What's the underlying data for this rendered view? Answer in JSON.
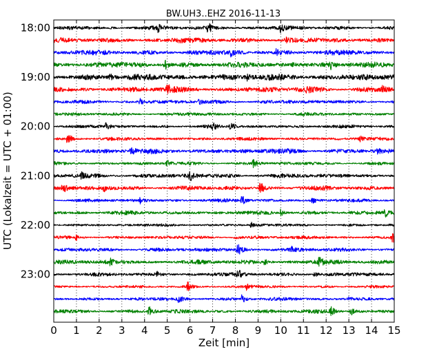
{
  "chart_data": {
    "type": "line",
    "title": "BW.UH3..EHZ 2016-11-13",
    "xlabel": "Zeit  [min]",
    "ylabel": "UTC (Lokalzeit = UTC + 01:00)",
    "xlim": [
      0,
      15
    ],
    "x_ticks": [
      0,
      1,
      2,
      3,
      4,
      5,
      6,
      7,
      8,
      9,
      10,
      11,
      12,
      13,
      14,
      15
    ],
    "x_tick_labels": [
      "0",
      "1",
      "2",
      "3",
      "4",
      "5",
      "6",
      "7",
      "8",
      "9",
      "10",
      "11",
      "12",
      "13",
      "14",
      "15"
    ],
    "y_tick_labels": [
      "18:00",
      "19:00",
      "20:00",
      "21:00",
      "22:00",
      "23:00"
    ],
    "grid": "vertical dotted at each minute",
    "trace_interval_min": 15,
    "colors": [
      "#000000",
      "#ff0000",
      "#0000ff",
      "#008000"
    ],
    "traces": [
      {
        "start": "18:00",
        "color": "#000000",
        "amp": 0.35,
        "events": [
          [
            6.8,
            1.4
          ],
          [
            4.6,
            0.6
          ],
          [
            10.0,
            0.7
          ]
        ]
      },
      {
        "start": "18:15",
        "color": "#ff0000",
        "amp": 0.45,
        "events": [
          [
            5.5,
            0.5
          ],
          [
            10.2,
            0.5
          ]
        ]
      },
      {
        "start": "18:30",
        "color": "#0000ff",
        "amp": 0.45,
        "events": [
          [
            7.8,
            0.5
          ],
          [
            9.8,
            0.5
          ]
        ]
      },
      {
        "start": "18:45",
        "color": "#008000",
        "amp": 0.5,
        "events": [
          [
            4.9,
            0.9
          ],
          [
            12.2,
            0.8
          ],
          [
            10.5,
            0.5
          ]
        ]
      },
      {
        "start": "19:00",
        "color": "#000000",
        "amp": 0.6,
        "events": [
          [
            2.5,
            0.5
          ],
          [
            8.5,
            0.5
          ]
        ]
      },
      {
        "start": "19:15",
        "color": "#ff0000",
        "amp": 0.5,
        "events": [
          [
            5.0,
            1.4
          ],
          [
            11.1,
            0.9
          ],
          [
            14.5,
            0.6
          ]
        ]
      },
      {
        "start": "19:30",
        "color": "#0000ff",
        "amp": 0.35,
        "events": [
          [
            3.8,
            0.6
          ],
          [
            6.4,
            0.5
          ]
        ]
      },
      {
        "start": "19:45",
        "color": "#008000",
        "amp": 0.3,
        "events": []
      },
      {
        "start": "20:00",
        "color": "#000000",
        "amp": 0.3,
        "events": [
          [
            2.3,
            0.5
          ],
          [
            7.0,
            0.6
          ],
          [
            7.8,
            0.9
          ]
        ]
      },
      {
        "start": "20:15",
        "color": "#ff0000",
        "amp": 0.3,
        "events": [
          [
            0.6,
            1.6
          ],
          [
            13.5,
            0.5
          ]
        ]
      },
      {
        "start": "20:30",
        "color": "#0000ff",
        "amp": 0.45,
        "events": [
          [
            3.4,
            1.3
          ],
          [
            14.2,
            0.5
          ]
        ]
      },
      {
        "start": "20:45",
        "color": "#008000",
        "amp": 0.3,
        "events": [
          [
            5.0,
            0.5
          ],
          [
            8.8,
            1.0
          ]
        ]
      },
      {
        "start": "21:00",
        "color": "#000000",
        "amp": 0.4,
        "events": [
          [
            1.2,
            0.7
          ],
          [
            6.0,
            1.2
          ]
        ]
      },
      {
        "start": "21:15",
        "color": "#ff0000",
        "amp": 0.4,
        "events": [
          [
            0.4,
            1.0
          ],
          [
            9.1,
            1.6
          ],
          [
            2.2,
            0.6
          ]
        ]
      },
      {
        "start": "21:30",
        "color": "#0000ff",
        "amp": 0.3,
        "events": [
          [
            3.8,
            0.7
          ],
          [
            8.3,
            1.0
          ],
          [
            11.4,
            0.6
          ]
        ]
      },
      {
        "start": "21:45",
        "color": "#008000",
        "amp": 0.35,
        "events": [
          [
            10.0,
            0.6
          ],
          [
            14.6,
            0.7
          ]
        ]
      },
      {
        "start": "22:00",
        "color": "#000000",
        "amp": 0.25,
        "events": [
          [
            8.7,
            0.6
          ]
        ]
      },
      {
        "start": "22:15",
        "color": "#ff0000",
        "amp": 0.3,
        "events": [
          [
            1.0,
            0.5
          ],
          [
            8.0,
            0.5
          ],
          [
            14.9,
            1.2
          ]
        ]
      },
      {
        "start": "22:30",
        "color": "#0000ff",
        "amp": 0.35,
        "events": [
          [
            8.1,
            2.2
          ],
          [
            10.5,
            0.5
          ]
        ]
      },
      {
        "start": "22:45",
        "color": "#008000",
        "amp": 0.4,
        "events": [
          [
            11.7,
            1.0
          ],
          [
            2.5,
            0.5
          ],
          [
            9.3,
            0.5
          ]
        ]
      },
      {
        "start": "23:00",
        "color": "#000000",
        "amp": 0.35,
        "events": [
          [
            8.1,
            1.0
          ],
          [
            4.5,
            0.6
          ],
          [
            11.5,
            0.5
          ]
        ]
      },
      {
        "start": "23:15",
        "color": "#ff0000",
        "amp": 0.25,
        "events": [
          [
            5.9,
            0.9
          ],
          [
            8.5,
            0.6
          ]
        ]
      },
      {
        "start": "23:30",
        "color": "#0000ff",
        "amp": 0.3,
        "events": [
          [
            5.5,
            1.0
          ],
          [
            8.3,
            0.9
          ],
          [
            13.0,
            0.5
          ]
        ]
      },
      {
        "start": "23:45",
        "color": "#008000",
        "amp": 0.35,
        "events": [
          [
            4.2,
            1.4
          ],
          [
            12.2,
            1.0
          ],
          [
            13.1,
            0.8
          ]
        ]
      }
    ]
  }
}
